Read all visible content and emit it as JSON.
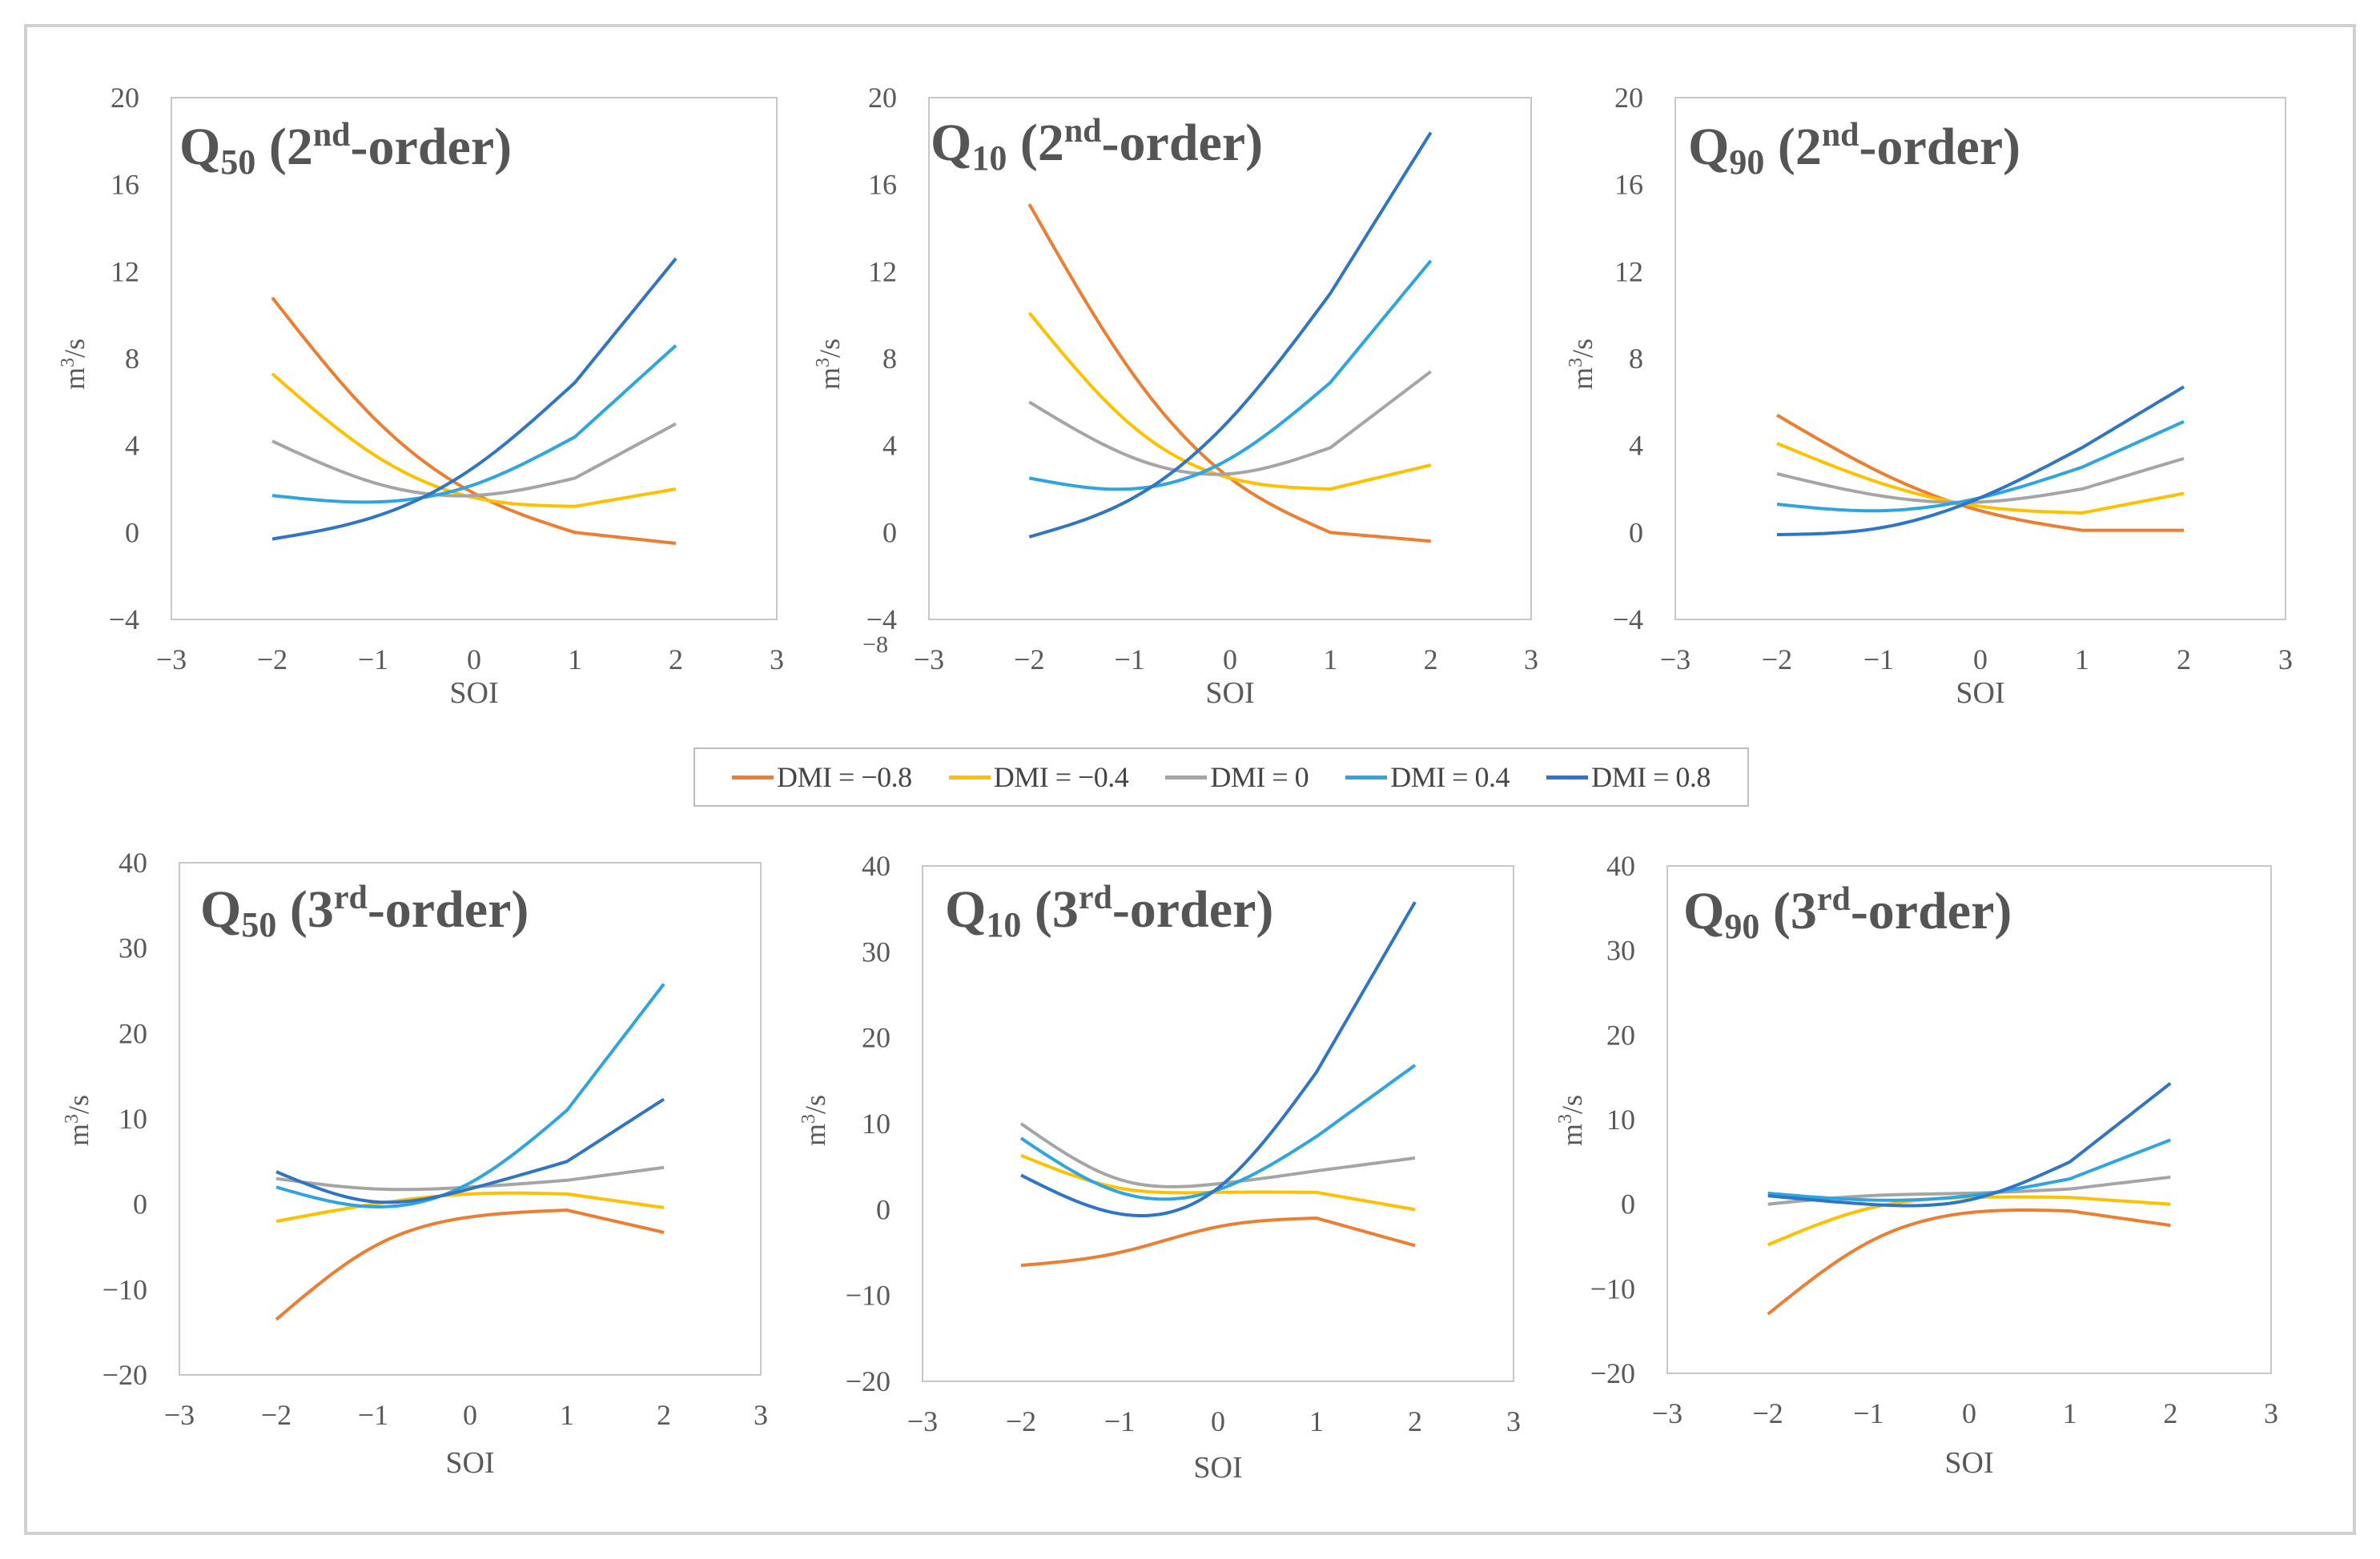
{
  "chart_data": [
    {
      "type": "line",
      "title": {
        "base": "Q",
        "sub": "50",
        "sup": "nd",
        "order_prefix": "(2",
        "order_suffix": "-order)"
      },
      "xlabel": "SOI",
      "ylabel": {
        "base": "m",
        "sup": "3",
        "rest": "/s"
      },
      "xlim": [
        -3,
        3
      ],
      "ylim": [
        -4,
        20
      ],
      "xticks": [
        "−3",
        "−2",
        "−1",
        "0",
        "1",
        "2",
        "3"
      ],
      "yticks": [
        "−4",
        "0",
        "4",
        "8",
        "12",
        "16",
        "20"
      ],
      "x": [
        -2,
        -1,
        0,
        1,
        2
      ],
      "series": [
        {
          "name": "DMI = −0.8",
          "values": [
            10.8,
            5.3,
            1.8,
            0.0,
            -0.5
          ]
        },
        {
          "name": "DMI = −0.4",
          "values": [
            7.3,
            3.6,
            1.6,
            1.2,
            2.0
          ]
        },
        {
          "name": "DMI = 0",
          "values": [
            4.2,
            2.3,
            1.7,
            2.5,
            5.0
          ]
        },
        {
          "name": "DMI = 0.4",
          "values": [
            1.7,
            1.4,
            2.2,
            4.4,
            8.6
          ]
        },
        {
          "name": "DMI = 0.8",
          "values": [
            -0.3,
            0.7,
            3.0,
            6.9,
            12.6
          ]
        }
      ]
    },
    {
      "type": "line",
      "title": {
        "base": "Q",
        "sub": "10",
        "sup": "nd",
        "order_prefix": "(2",
        "order_suffix": "-order)"
      },
      "xlabel": "SOI",
      "ylabel": {
        "base": "m",
        "sup": "3",
        "rest": "/s"
      },
      "xlim": [
        -3,
        3
      ],
      "ylim": [
        -4,
        20
      ],
      "xticks": [
        "−3",
        "−2",
        "−1",
        "0",
        "1",
        "2",
        "3"
      ],
      "yticks": [
        "−4",
        "0",
        "4",
        "8",
        "12",
        "16",
        "20"
      ],
      "extra_label": "−8",
      "x": [
        -2,
        -1,
        0,
        1,
        2
      ],
      "series": [
        {
          "name": "DMI = −0.8",
          "values": [
            15.1,
            7.5,
            2.5,
            0.0,
            -0.4
          ]
        },
        {
          "name": "DMI = −0.4",
          "values": [
            10.1,
            5.0,
            2.5,
            2.0,
            3.1
          ]
        },
        {
          "name": "DMI = 0",
          "values": [
            6.0,
            3.5,
            2.7,
            3.9,
            7.4
          ]
        },
        {
          "name": "DMI = 0.4",
          "values": [
            2.5,
            2.0,
            3.4,
            6.9,
            12.5
          ]
        },
        {
          "name": "DMI = 0.8",
          "values": [
            -0.2,
            1.5,
            5.2,
            11.0,
            18.4
          ]
        }
      ]
    },
    {
      "type": "line",
      "title": {
        "base": "Q",
        "sub": "90",
        "sup": "nd",
        "order_prefix": "(2",
        "order_suffix": "-order)"
      },
      "xlabel": "SOI",
      "ylabel": {
        "base": "m",
        "sup": "3",
        "rest": "/s"
      },
      "xlim": [
        -3,
        3
      ],
      "ylim": [
        -4,
        20
      ],
      "xticks": [
        "−3",
        "−2",
        "−1",
        "0",
        "1",
        "2",
        "3"
      ],
      "yticks": [
        "−4",
        "0",
        "4",
        "8",
        "12",
        "16",
        "20"
      ],
      "x": [
        -2,
        -1,
        0,
        1,
        2
      ],
      "series": [
        {
          "name": "DMI = −0.8",
          "values": [
            5.4,
            2.8,
            1.0,
            0.1,
            0.1
          ]
        },
        {
          "name": "DMI = −0.4",
          "values": [
            4.1,
            2.3,
            1.2,
            0.9,
            1.8
          ]
        },
        {
          "name": "DMI = 0",
          "values": [
            2.7,
            1.7,
            1.4,
            2.0,
            3.4
          ]
        },
        {
          "name": "DMI = 0.4",
          "values": [
            1.3,
            1.0,
            1.6,
            3.0,
            5.1
          ]
        },
        {
          "name": "DMI = 0.8",
          "values": [
            -0.1,
            0.2,
            1.6,
            3.9,
            6.7
          ]
        }
      ]
    },
    {
      "type": "line",
      "title": {
        "base": "Q",
        "sub": "50",
        "sup": "rd",
        "order_prefix": "(3",
        "order_suffix": "-order)"
      },
      "xlabel": "SOI",
      "ylabel": {
        "base": "m",
        "sup": "3",
        "rest": "/s"
      },
      "xlim": [
        -3,
        3
      ],
      "ylim": [
        -20,
        40
      ],
      "xticks": [
        "−3",
        "−2",
        "−1",
        "0",
        "1",
        "2",
        "3"
      ],
      "yticks": [
        "−20",
        "−10",
        "0",
        "10",
        "20",
        "30",
        "40"
      ],
      "x": [
        -2,
        -1,
        0,
        1,
        2
      ],
      "series": [
        {
          "name": "DMI = −0.8",
          "values": [
            -13.5,
            -5.0,
            -1.5,
            -0.7,
            -3.3
          ]
        },
        {
          "name": "DMI = −0.4",
          "values": [
            -2.0,
            0.0,
            1.2,
            1.2,
            -0.4
          ]
        },
        {
          "name": "DMI = 0",
          "values": [
            3.0,
            1.8,
            2.0,
            2.8,
            4.3
          ]
        },
        {
          "name": "DMI = 0.4",
          "values": [
            2.0,
            -0.3,
            2.5,
            11.0,
            25.8
          ]
        },
        {
          "name": "DMI = 0.8",
          "values": [
            3.8,
            0.3,
            1.8,
            5.0,
            12.3
          ]
        }
      ]
    },
    {
      "type": "line",
      "title": {
        "base": "Q",
        "sub": "10",
        "sup": "rd",
        "order_prefix": "(3",
        "order_suffix": "-order)"
      },
      "xlabel": "SOI",
      "ylabel": {
        "base": "m",
        "sup": "3",
        "rest": "/s"
      },
      "xlim": [
        -3,
        3
      ],
      "ylim": [
        -20,
        40
      ],
      "xticks": [
        "−3",
        "−2",
        "−1",
        "0",
        "1",
        "2",
        "3"
      ],
      "yticks": [
        "−20",
        "−10",
        "0",
        "10",
        "20",
        "30",
        "40"
      ],
      "x": [
        -2,
        -1,
        0,
        1,
        2
      ],
      "series": [
        {
          "name": "DMI = −0.8",
          "values": [
            -6.5,
            -5.0,
            -2.0,
            -1.0,
            -4.2
          ]
        },
        {
          "name": "DMI = −0.4",
          "values": [
            6.3,
            2.5,
            2.0,
            2.0,
            0.0
          ]
        },
        {
          "name": "DMI = 0",
          "values": [
            10.0,
            3.5,
            3.0,
            4.5,
            6.0
          ]
        },
        {
          "name": "DMI = 0.4",
          "values": [
            8.3,
            2.0,
            2.3,
            8.5,
            16.8
          ]
        },
        {
          "name": "DMI = 0.8",
          "values": [
            4.0,
            -0.5,
            2.5,
            16.0,
            35.8
          ]
        }
      ]
    },
    {
      "type": "line",
      "title": {
        "base": "Q",
        "sub": "90",
        "sup": "rd",
        "order_prefix": "(3",
        "order_suffix": "-order)"
      },
      "xlabel": "SOI",
      "ylabel": {
        "base": "m",
        "sup": "3",
        "rest": "/s"
      },
      "xlim": [
        -3,
        3
      ],
      "ylim": [
        -20,
        40
      ],
      "xticks": [
        "−3",
        "−2",
        "−1",
        "0",
        "1",
        "2",
        "3"
      ],
      "yticks": [
        "−20",
        "−10",
        "0",
        "10",
        "20",
        "30",
        "40"
      ],
      "x": [
        -2,
        -1,
        0,
        1,
        2
      ],
      "series": [
        {
          "name": "DMI = −0.8",
          "values": [
            -13.0,
            -4.5,
            -1.0,
            -0.8,
            -2.5
          ]
        },
        {
          "name": "DMI = −0.4",
          "values": [
            -4.8,
            -0.5,
            0.8,
            0.8,
            0.0
          ]
        },
        {
          "name": "DMI = 0",
          "values": [
            0.0,
            1.0,
            1.3,
            1.8,
            3.2
          ]
        },
        {
          "name": "DMI = 0.4",
          "values": [
            1.3,
            0.5,
            1.0,
            3.0,
            7.6
          ]
        },
        {
          "name": "DMI = 0.8",
          "values": [
            1.0,
            0.0,
            0.5,
            5.0,
            14.3
          ]
        }
      ]
    }
  ],
  "legend": {
    "items": [
      {
        "label": "DMI = −0.8",
        "color": "#ED7D31"
      },
      {
        "label": "DMI = −0.4",
        "color": "#FFC000"
      },
      {
        "label": "DMI = 0",
        "color": "#A5A5A5"
      },
      {
        "label": "DMI = 0.4",
        "color": "#2EA4E0"
      },
      {
        "label": "DMI = 0.8",
        "color": "#2E75C6"
      }
    ]
  },
  "colors": {
    "text": "#595959",
    "axis": "#c8c8c8",
    "title": "#555555"
  }
}
